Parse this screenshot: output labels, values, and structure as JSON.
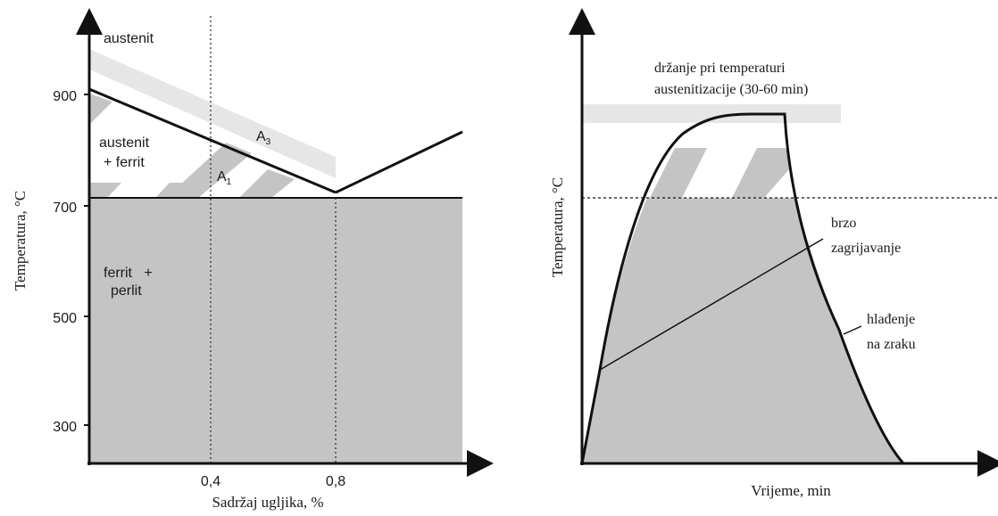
{
  "left_diagram": {
    "y_axis_label": "Temperatura, °C",
    "x_axis_label": "Sadržaj ugljika, %",
    "y_ticks": [
      "900",
      "700",
      "500",
      "300"
    ],
    "x_ticks": [
      "0,4",
      "0,8"
    ],
    "labels": {
      "austenit": "austenit",
      "austenit_ferrit_1": "austenit",
      "austenit_ferrit_2": "+ ferrit",
      "ferrit_perlit_1": "ferrit   +",
      "ferrit_perlit_2": "perlit",
      "a3_main": "A",
      "a3_sub": "3",
      "a1_main": "A",
      "a1_sub": "1"
    }
  },
  "right_diagram": {
    "y_axis_label": "Temperatura, °C",
    "x_axis_label": "Vrijeme, min",
    "labels": {
      "holding_1": "držanje pri temperaturi",
      "holding_2": "austenitizacije (30-60 min)",
      "heating_1": "brzo",
      "heating_2": "zagrijavanje",
      "cooling_1": "hlađenje",
      "cooling_2": "na zraku"
    }
  },
  "colors": {
    "fill_gray": "#c4c4c4",
    "band_light": "#e6e6e6",
    "hatch_gray": "#c4c4c4",
    "line": "#111111"
  }
}
